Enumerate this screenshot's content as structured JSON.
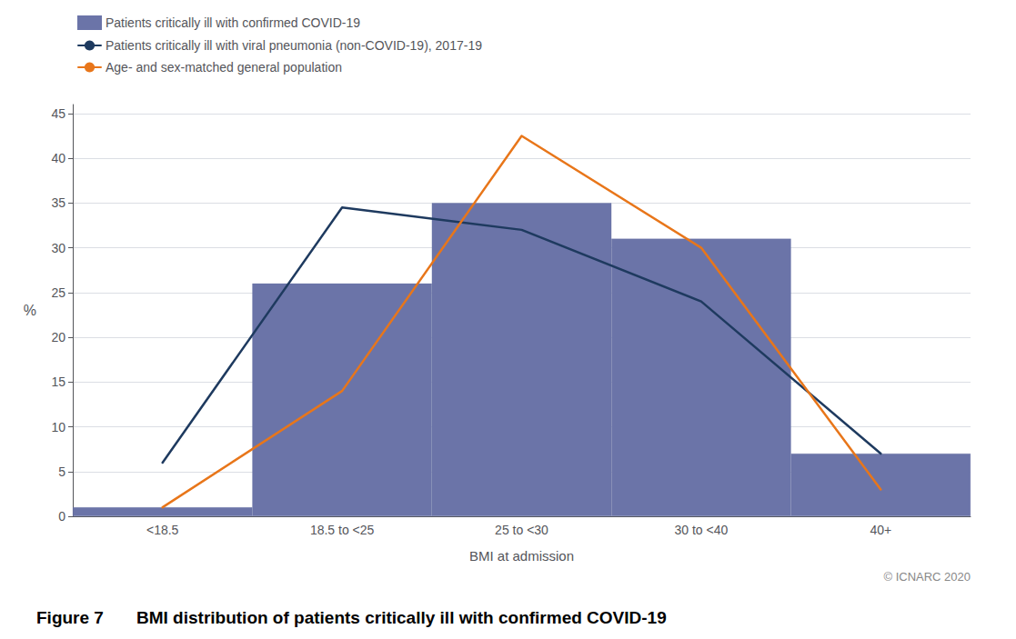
{
  "chart_data": {
    "type": "bar",
    "categories": [
      "<18.5",
      "18.5 to <25",
      "25 to <30",
      "30 to <40",
      "40+"
    ],
    "series": [
      {
        "name": "Patients critically ill with confirmed COVID-19",
        "type": "bar",
        "color": "#6b74a8",
        "values": [
          1,
          26,
          35,
          31,
          7
        ]
      },
      {
        "name": "Patients critically ill with viral pneumonia (non-COVID-19), 2017-19",
        "type": "line",
        "color": "#1e3a5f",
        "values": [
          6,
          34.5,
          32,
          24,
          7
        ]
      },
      {
        "name": "Age- and sex-matched general population",
        "type": "line",
        "color": "#e8761a",
        "values": [
          1,
          14,
          42.5,
          30,
          3
        ]
      }
    ],
    "xlabel": "BMI at admission",
    "ylabel": "%",
    "ylim": [
      0,
      46
    ],
    "yticks": [
      0,
      5,
      10,
      15,
      20,
      25,
      30,
      35,
      40,
      45
    ],
    "grid": true,
    "legend": "top",
    "annotations": [
      "Figure 7",
      "BMI distribution of patients critically ill with confirmed COVID-19",
      "© ICNARC 2020"
    ]
  }
}
